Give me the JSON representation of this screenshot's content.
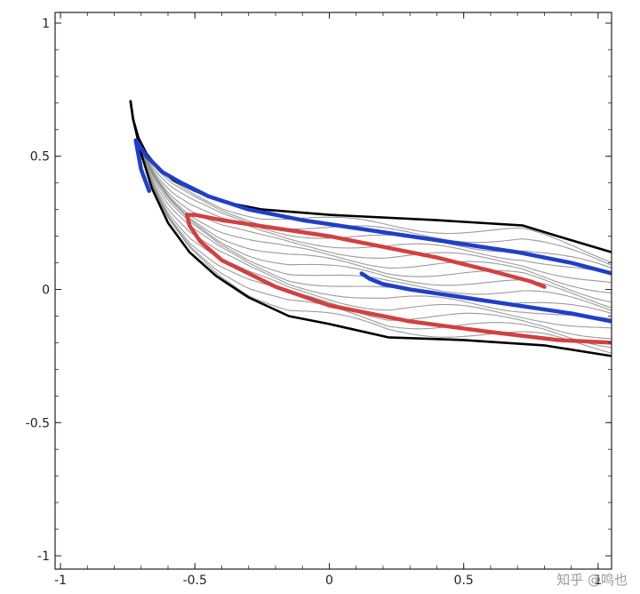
{
  "chart_data": {
    "type": "line",
    "title": "",
    "xlabel": "",
    "ylabel": "",
    "xlim": [
      -1.02,
      1.05
    ],
    "ylim": [
      -1.05,
      1.04
    ],
    "grid": false,
    "legend": "none",
    "x_ticks": [
      {
        "value": -1,
        "label": "-1"
      },
      {
        "value": -0.5,
        "label": "-0.5"
      },
      {
        "value": 0,
        "label": "0"
      },
      {
        "value": 0.5,
        "label": "0.5"
      },
      {
        "value": 1,
        "label": "1"
      }
    ],
    "y_ticks": [
      {
        "value": 1,
        "label": "1"
      },
      {
        "value": 0.5,
        "label": "0.5"
      },
      {
        "value": 0,
        "label": "0"
      },
      {
        "value": -0.5,
        "label": "-0.5"
      },
      {
        "value": -1,
        "label": "-1"
      }
    ],
    "boundary_upper": [
      [
        -0.74,
        0.71
      ],
      [
        -0.73,
        0.64
      ],
      [
        -0.71,
        0.57
      ],
      [
        -0.68,
        0.51
      ],
      [
        -0.64,
        0.46
      ],
      [
        -0.58,
        0.41
      ],
      [
        -0.5,
        0.37
      ],
      [
        -0.4,
        0.33
      ],
      [
        -0.25,
        0.3
      ],
      [
        0,
        0.28
      ],
      [
        0.4,
        0.26
      ],
      [
        0.72,
        0.24
      ],
      [
        0.85,
        0.2
      ],
      [
        1.05,
        0.14
      ]
    ],
    "boundary_lower": [
      [
        -0.74,
        0.71
      ],
      [
        -0.73,
        0.64
      ],
      [
        -0.7,
        0.51
      ],
      [
        -0.66,
        0.38
      ],
      [
        -0.6,
        0.25
      ],
      [
        -0.52,
        0.14
      ],
      [
        -0.42,
        0.05
      ],
      [
        -0.3,
        -0.03
      ],
      [
        -0.15,
        -0.1
      ],
      [
        0,
        -0.13
      ],
      [
        0.22,
        -0.18
      ],
      [
        0.5,
        -0.19
      ],
      [
        0.8,
        -0.21
      ],
      [
        1.05,
        -0.25
      ]
    ],
    "streamlines": {
      "count": 16,
      "color": "#8a8a8a"
    },
    "series": [
      {
        "color": "#1f3fc8",
        "values": [
          [
            -0.67,
            0.37
          ],
          [
            -0.7,
            0.45
          ],
          [
            -0.72,
            0.56
          ],
          [
            -0.68,
            0.5
          ],
          [
            -0.62,
            0.44
          ],
          [
            -0.55,
            0.4
          ],
          [
            -0.45,
            0.35
          ],
          [
            -0.3,
            0.3
          ],
          [
            -0.1,
            0.26
          ],
          [
            0.1,
            0.23
          ],
          [
            0.3,
            0.2
          ],
          [
            0.5,
            0.17
          ],
          [
            0.7,
            0.14
          ],
          [
            0.9,
            0.1
          ],
          [
            1.05,
            0.06
          ]
        ]
      },
      {
        "color": "#d24040",
        "values": [
          [
            0.8,
            0.01
          ],
          [
            0.75,
            0.03
          ],
          [
            0.6,
            0.07
          ],
          [
            0.4,
            0.12
          ],
          [
            0.2,
            0.16
          ],
          [
            0,
            0.2
          ],
          [
            -0.2,
            0.23
          ],
          [
            -0.4,
            0.26
          ],
          [
            -0.5,
            0.28
          ],
          [
            -0.53,
            0.28
          ],
          [
            -0.52,
            0.24
          ],
          [
            -0.48,
            0.18
          ],
          [
            -0.4,
            0.11
          ],
          [
            -0.2,
            0.01
          ],
          [
            0,
            -0.06
          ],
          [
            0.3,
            -0.12
          ],
          [
            0.6,
            -0.16
          ],
          [
            0.85,
            -0.19
          ],
          [
            1.05,
            -0.2
          ]
        ]
      },
      {
        "color": "#1f3fc8",
        "values": [
          [
            0.12,
            0.06
          ],
          [
            0.15,
            0.04
          ],
          [
            0.2,
            0.02
          ],
          [
            0.3,
            0.0
          ],
          [
            0.5,
            -0.03
          ],
          [
            0.7,
            -0.06
          ],
          [
            0.9,
            -0.09
          ],
          [
            1.05,
            -0.12
          ]
        ]
      }
    ]
  },
  "watermark": "知乎 @鸣也"
}
